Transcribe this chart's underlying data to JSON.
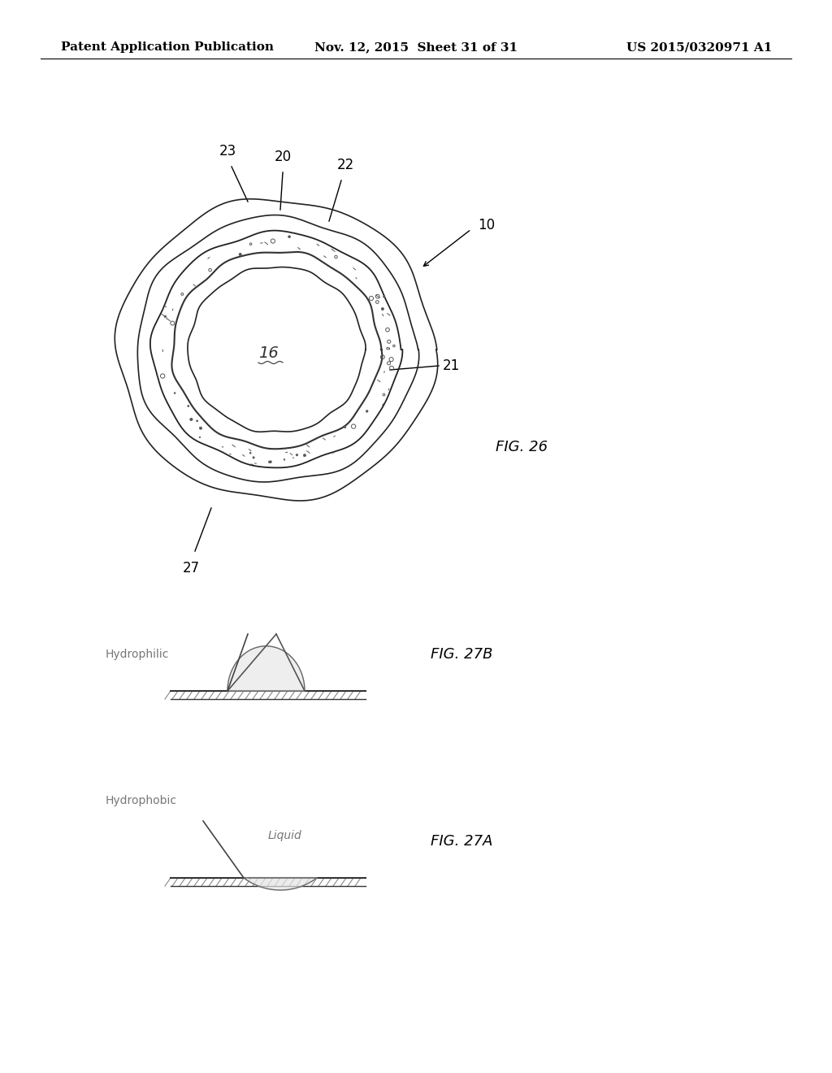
{
  "background_color": "#ffffff",
  "header_left": "Patent Application Publication",
  "header_center": "Nov. 12, 2015  Sheet 31 of 31",
  "header_right": "US 2015/0320971 A1",
  "header_fontsize": 11,
  "fig26_label": "FIG. 26",
  "fig27b_label": "FIG. 27B",
  "fig27a_label": "FIG. 27A",
  "label_10": "10",
  "label_20": "20",
  "label_21": "21",
  "label_22": "22",
  "label_23": "23",
  "label_27": "27",
  "label_116": "16",
  "label_hydrophilic": "Hydrophilic",
  "label_hydrophobic": "Hydrophobic",
  "label_liquid_27a": "Liquid"
}
